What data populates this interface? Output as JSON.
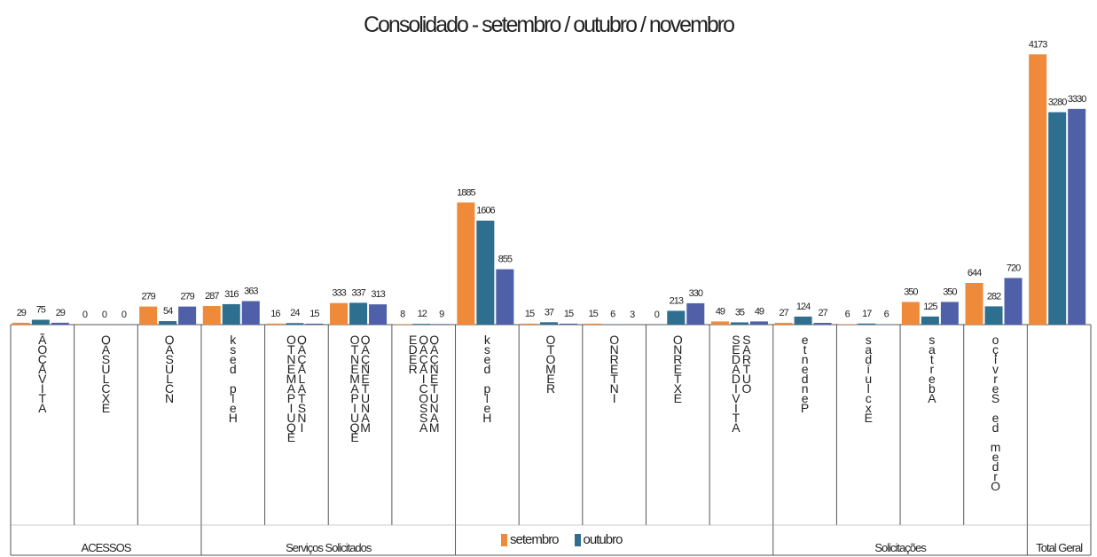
{
  "chart_data": {
    "type": "bar",
    "title": "Consolidado - setembro / outubro / novembro",
    "groups": [
      {
        "label": "ACESSOS",
        "categories": [
          0,
          1,
          2
        ]
      },
      {
        "label": "Serviços Solicitados",
        "categories": [
          3,
          4,
          5,
          6
        ]
      },
      {
        "label": "",
        "categories": [
          7,
          8,
          9,
          10,
          11
        ]
      },
      {
        "label": "Solicitações",
        "categories": [
          12,
          13,
          14,
          15
        ]
      },
      {
        "label": "Total Geral",
        "categories": [
          16
        ]
      }
    ],
    "categories": [
      "ATIVAÇÃO",
      "EXCLUSÃO",
      "INCLUSÃO",
      "Help desk",
      "INSTALAÇÃO EQUIPAMENTO",
      "MANUTENÇÃO EQUIPAMENTO",
      "MANUTENÇÃO REDE ASSOCIAÇÃO",
      "Help desk",
      "REMOTO",
      "INTERNO",
      "EXTERNO",
      "OUTRAS ATIVIDADES",
      "Pendente",
      "Excluídas",
      "Abertas",
      "Ordem de Serviço",
      ""
    ],
    "category_display": [
      [
        "Ã",
        "O",
        "Ç",
        "A",
        "V",
        "I",
        "T",
        "A"
      ],
      [
        "O",
        "Ã",
        "S",
        "U",
        "L",
        "C",
        "X",
        "E"
      ],
      [
        "O",
        "Ã",
        "S",
        "U",
        "L",
        "C",
        "N"
      ],
      [
        "k",
        "s",
        "e",
        "d",
        " ",
        "p",
        "l",
        "e",
        "H"
      ],
      [
        "O",
        "T",
        "N",
        "E",
        "M",
        "A",
        "P",
        "I",
        "U",
        "Q",
        "E",
        "|",
        "O",
        "Ã",
        "Ç",
        "A",
        "L",
        "A",
        "T",
        "S",
        "N",
        "I"
      ],
      [
        "O",
        "T",
        "N",
        "E",
        "M",
        "A",
        "P",
        "I",
        "U",
        "Q",
        "E",
        "|",
        "O",
        "Ã",
        "Ç",
        "N",
        "E",
        "T",
        "U",
        "N",
        "A",
        "M"
      ],
      [
        "E",
        "D",
        "E",
        "R",
        "|",
        "O",
        "Ã",
        "Ç",
        "A",
        "I",
        "C",
        "O",
        "S",
        "S",
        "A",
        "|",
        "O",
        "Ã",
        "Ç",
        "N",
        "E",
        "T",
        "U",
        "N",
        "A",
        "M"
      ],
      [
        "k",
        "s",
        "e",
        "d",
        " ",
        "p",
        "l",
        "e",
        "H"
      ],
      [
        "O",
        "T",
        "O",
        "M",
        "E",
        "R"
      ],
      [
        "O",
        "N",
        "R",
        "E",
        "T",
        "N",
        "I"
      ],
      [
        "O",
        "N",
        "R",
        "E",
        "T",
        "X",
        "E"
      ],
      [
        "S",
        "E",
        "D",
        "A",
        "D",
        "I",
        "V",
        "I",
        "T",
        "A",
        "|",
        "S",
        "A",
        "R",
        "T",
        "U",
        "O"
      ],
      [
        "e",
        "t",
        "n",
        "e",
        "d",
        "n",
        "e",
        "P"
      ],
      [
        "s",
        "a",
        "d",
        "í",
        "u",
        "l",
        "c",
        "x",
        "E"
      ],
      [
        "s",
        "a",
        "t",
        "r",
        "e",
        "b",
        "A"
      ],
      [
        "o",
        "ç",
        "i",
        "v",
        "r",
        "e",
        "S",
        " ",
        "e",
        "d",
        " ",
        "m",
        "e",
        "d",
        "r",
        "O"
      ],
      []
    ],
    "series": [
      {
        "name": "setembro",
        "color": "#EE8A3A",
        "values": [
          29,
          0,
          279,
          287,
          16,
          333,
          8,
          1885,
          15,
          15,
          0,
          49,
          27,
          6,
          350,
          644,
          4173
        ]
      },
      {
        "name": "outubro",
        "color": "#2E6E8E",
        "values": [
          75,
          0,
          54,
          316,
          24,
          337,
          12,
          1606,
          37,
          6,
          213,
          35,
          124,
          17,
          125,
          282,
          3280
        ]
      },
      {
        "name": "novembro",
        "color": "#4F5FA8",
        "values": [
          29,
          0,
          279,
          363,
          15,
          313,
          9,
          855,
          15,
          3,
          330,
          49,
          27,
          6,
          350,
          720,
          3330
        ]
      }
    ],
    "legend": {
      "position": "bottom-center",
      "entries": [
        "setembro",
        "outubro"
      ]
    },
    "ylim": [
      0,
      4300
    ],
    "grid": false
  }
}
